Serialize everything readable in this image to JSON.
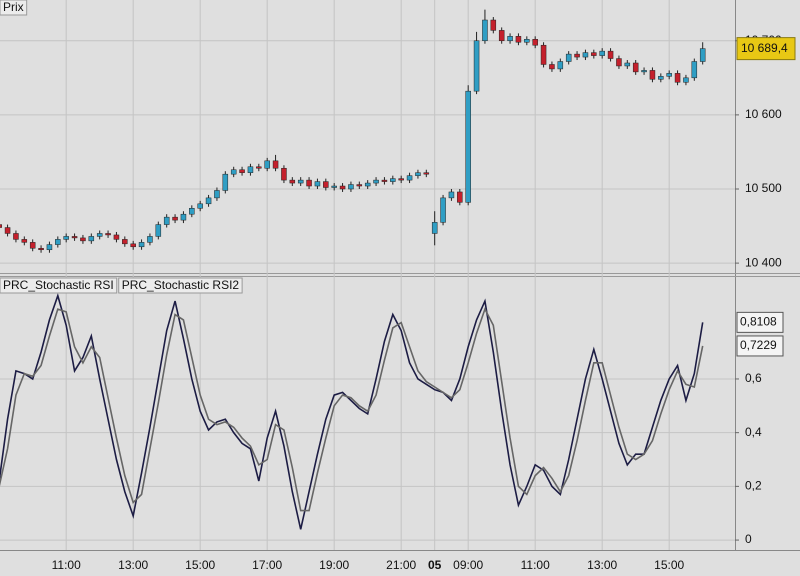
{
  "chart_data": [
    {
      "type": "candlestick",
      "title": "Prix",
      "categories": [
        null,
        null,
        null,
        null,
        null,
        null,
        null,
        null,
        "11:00",
        null,
        null,
        null,
        null,
        null,
        null,
        null,
        "13:00",
        null,
        null,
        null,
        null,
        null,
        null,
        null,
        "15:00",
        null,
        null,
        null,
        null,
        null,
        null,
        null,
        "17:00",
        null,
        null,
        null,
        null,
        null,
        null,
        null,
        "19:00",
        null,
        null,
        null,
        null,
        null,
        null,
        null,
        "21:00",
        null,
        null,
        null,
        "05",
        null,
        null,
        null,
        "09:00",
        null,
        null,
        null,
        null,
        null,
        null,
        null,
        "11:00",
        null,
        null,
        null,
        null,
        null,
        null,
        null,
        "13:00",
        null,
        null,
        null,
        null,
        null,
        null,
        null,
        "15:00",
        null,
        null,
        null,
        null
      ],
      "open": [
        10452,
        10448,
        10440,
        10432,
        10428,
        10420,
        10418,
        10425,
        10432,
        10436,
        10434,
        10430,
        10436,
        10440,
        10438,
        10432,
        10426,
        10422,
        10428,
        10436,
        10452,
        10462,
        10458,
        10466,
        10474,
        10480,
        10488,
        10498,
        10520,
        10526,
        10522,
        10530,
        10528,
        10538,
        10528,
        10512,
        10508,
        10512,
        10504,
        10510,
        10502,
        10504,
        10500,
        10506,
        10504,
        10508,
        10512,
        10510,
        10514,
        10512,
        10518,
        10522,
        10440,
        10455,
        10488,
        10496,
        10482,
        10632,
        10700,
        10728,
        10714,
        10700,
        10706,
        10698,
        10702,
        10694,
        10668,
        10662,
        10672,
        10682,
        10678,
        10684,
        10680,
        10686,
        10676,
        10666,
        10670,
        10658,
        10660,
        10648,
        10652,
        10656,
        10644,
        10650,
        10672
      ],
      "high": [
        10456,
        10452,
        10444,
        10436,
        10432,
        10424,
        10429,
        10436,
        10440,
        10440,
        10438,
        10440,
        10444,
        10444,
        10442,
        10436,
        10430,
        10432,
        10440,
        10456,
        10466,
        10466,
        10470,
        10478,
        10484,
        10492,
        10502,
        10524,
        10530,
        10530,
        10534,
        10534,
        10542,
        10546,
        10532,
        10516,
        10516,
        10516,
        10514,
        10514,
        10508,
        10508,
        10510,
        10510,
        10512,
        10516,
        10516,
        10518,
        10518,
        10522,
        10526,
        10526,
        10470,
        10492,
        10500,
        10500,
        10640,
        10712,
        10742,
        10732,
        10718,
        10710,
        10710,
        10706,
        10706,
        10698,
        10672,
        10676,
        10686,
        10686,
        10688,
        10688,
        10690,
        10690,
        10680,
        10674,
        10674,
        10664,
        10664,
        10656,
        10660,
        10660,
        10654,
        10676,
        10698
      ],
      "low": [
        10444,
        10436,
        10428,
        10424,
        10416,
        10414,
        10414,
        10421,
        10428,
        10430,
        10426,
        10426,
        10432,
        10434,
        10428,
        10422,
        10418,
        10418,
        10424,
        10432,
        10448,
        10454,
        10454,
        10462,
        10470,
        10476,
        10484,
        10494,
        10516,
        10518,
        10518,
        10524,
        10524,
        10524,
        10508,
        10504,
        10504,
        10500,
        10500,
        10498,
        10498,
        10496,
        10496,
        10500,
        10500,
        10504,
        10506,
        10506,
        10508,
        10508,
        10514,
        10516,
        10424,
        10451,
        10484,
        10478,
        10478,
        10628,
        10696,
        10710,
        10696,
        10696,
        10694,
        10694,
        10690,
        10664,
        10658,
        10658,
        10668,
        10674,
        10674,
        10676,
        10676,
        10672,
        10662,
        10662,
        10654,
        10654,
        10644,
        10644,
        10648,
        10640,
        10640,
        10646,
        10668
      ],
      "close": [
        10448,
        10440,
        10432,
        10428,
        10420,
        10418,
        10425,
        10432,
        10436,
        10434,
        10430,
        10436,
        10440,
        10438,
        10432,
        10426,
        10422,
        10428,
        10436,
        10452,
        10462,
        10458,
        10466,
        10474,
        10480,
        10488,
        10498,
        10520,
        10526,
        10522,
        10530,
        10528,
        10538,
        10528,
        10512,
        10508,
        10512,
        10504,
        10510,
        10502,
        10504,
        10500,
        10506,
        10504,
        10508,
        10512,
        10510,
        10514,
        10512,
        10518,
        10522,
        10520,
        10455,
        10488,
        10496,
        10482,
        10632,
        10700,
        10728,
        10714,
        10700,
        10706,
        10698,
        10702,
        10694,
        10668,
        10662,
        10672,
        10682,
        10678,
        10684,
        10680,
        10686,
        10676,
        10666,
        10670,
        10658,
        10660,
        10648,
        10652,
        10656,
        10644,
        10650,
        10672,
        10689.4
      ],
      "up_color": "#2f9ec4",
      "down_color": "#c4202c",
      "ylim": [
        10388,
        10755
      ],
      "yticks": [
        {
          "value": 10400,
          "label": "10 400"
        },
        {
          "value": 10500,
          "label": "10 500"
        },
        {
          "value": 10600,
          "label": "10 600"
        },
        {
          "value": 10700,
          "label": "10 700"
        }
      ],
      "price_marker": {
        "value": 10689.4,
        "label": "10 689,4"
      },
      "grid": true
    },
    {
      "type": "line",
      "series": [
        {
          "name": "PRC_Stochastic RSI",
          "color": "#1c1c44",
          "values": [
            0.22,
            0.45,
            0.63,
            0.62,
            0.6,
            0.7,
            0.82,
            0.91,
            0.8,
            0.63,
            0.68,
            0.76,
            0.6,
            0.45,
            0.3,
            0.18,
            0.09,
            0.25,
            0.42,
            0.6,
            0.78,
            0.89,
            0.75,
            0.6,
            0.48,
            0.41,
            0.44,
            0.45,
            0.4,
            0.36,
            0.34,
            0.22,
            0.38,
            0.48,
            0.35,
            0.18,
            0.04,
            0.18,
            0.32,
            0.45,
            0.54,
            0.55,
            0.52,
            0.49,
            0.47,
            0.6,
            0.74,
            0.84,
            0.78,
            0.66,
            0.6,
            0.58,
            0.56,
            0.55,
            0.52,
            0.6,
            0.72,
            0.82,
            0.89,
            0.7,
            0.48,
            0.28,
            0.13,
            0.2,
            0.28,
            0.26,
            0.2,
            0.17,
            0.3,
            0.45,
            0.6,
            0.71,
            0.6,
            0.48,
            0.36,
            0.28,
            0.32,
            0.32,
            0.42,
            0.52,
            0.6,
            0.65,
            0.52,
            0.62,
            0.8108
          ]
        },
        {
          "name": "PRC_Stochastic RSI2",
          "color": "#666666",
          "values": [
            0.2,
            0.34,
            0.54,
            0.62,
            0.61,
            0.65,
            0.76,
            0.86,
            0.85,
            0.72,
            0.66,
            0.72,
            0.68,
            0.53,
            0.38,
            0.24,
            0.14,
            0.17,
            0.34,
            0.51,
            0.69,
            0.84,
            0.82,
            0.68,
            0.54,
            0.45,
            0.43,
            0.44,
            0.42,
            0.38,
            0.35,
            0.28,
            0.3,
            0.43,
            0.41,
            0.27,
            0.11,
            0.11,
            0.25,
            0.38,
            0.5,
            0.54,
            0.53,
            0.5,
            0.48,
            0.54,
            0.67,
            0.79,
            0.81,
            0.72,
            0.63,
            0.59,
            0.57,
            0.55,
            0.53,
            0.56,
            0.66,
            0.77,
            0.86,
            0.8,
            0.59,
            0.38,
            0.2,
            0.17,
            0.24,
            0.27,
            0.23,
            0.18,
            0.24,
            0.37,
            0.52,
            0.66,
            0.66,
            0.54,
            0.42,
            0.32,
            0.3,
            0.32,
            0.37,
            0.47,
            0.56,
            0.63,
            0.58,
            0.57,
            0.7229
          ]
        }
      ],
      "ylim": [
        -0.037,
        0.976
      ],
      "yticks": [
        0,
        {
          "value": 0.2,
          "label": "0,2"
        },
        {
          "value": 0.4,
          "label": "0,4"
        },
        {
          "value": 0.6,
          "label": "0,6"
        }
      ],
      "markers": [
        {
          "value": 0.8108,
          "label": "0,8108"
        },
        {
          "value": 0.7229,
          "label": "0,7229"
        }
      ],
      "grid": true
    }
  ]
}
